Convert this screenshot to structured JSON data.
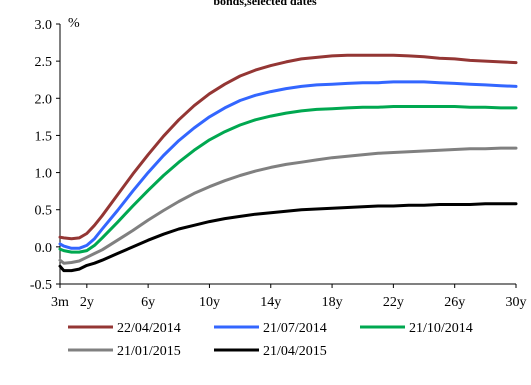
{
  "chart_data": {
    "type": "line",
    "title": "bonds,selected dates",
    "ylabel": "%",
    "xlabel": "",
    "x_tick_labels": [
      "3m",
      "2y",
      "6y",
      "10y",
      "14y",
      "18y",
      "22y",
      "26y",
      "30y"
    ],
    "x_ticks": [
      0.25,
      2,
      6,
      10,
      14,
      18,
      22,
      26,
      30
    ],
    "xlim": [
      0.25,
      30
    ],
    "ylim": [
      -0.5,
      3.0
    ],
    "y_ticks": [
      -0.5,
      0.0,
      0.5,
      1.0,
      1.5,
      2.0,
      2.5,
      3.0
    ],
    "y_tick_labels": [
      "-0.5",
      "0.0",
      "0.5",
      "1.0",
      "1.5",
      "2.0",
      "2.5",
      "3.0"
    ],
    "grid": false,
    "legend_position": "bottom",
    "x": [
      0.25,
      0.5,
      1,
      1.5,
      2,
      2.5,
      3,
      4,
      5,
      6,
      7,
      8,
      9,
      10,
      11,
      12,
      13,
      14,
      15,
      16,
      17,
      18,
      19,
      20,
      21,
      22,
      23,
      24,
      25,
      26,
      27,
      28,
      29,
      30
    ],
    "series": [
      {
        "name": "22/04/2014",
        "color": "#943634",
        "values": [
          0.13,
          0.12,
          0.11,
          0.12,
          0.18,
          0.29,
          0.42,
          0.7,
          0.98,
          1.24,
          1.49,
          1.71,
          1.9,
          2.06,
          2.19,
          2.3,
          2.38,
          2.44,
          2.49,
          2.53,
          2.55,
          2.57,
          2.58,
          2.58,
          2.58,
          2.58,
          2.57,
          2.56,
          2.54,
          2.53,
          2.51,
          2.5,
          2.49,
          2.48
        ]
      },
      {
        "name": "21/07/2014",
        "color": "#3366ff",
        "values": [
          0.04,
          0.01,
          -0.02,
          -0.02,
          0.02,
          0.11,
          0.24,
          0.49,
          0.75,
          1.0,
          1.23,
          1.43,
          1.6,
          1.75,
          1.87,
          1.97,
          2.04,
          2.09,
          2.13,
          2.16,
          2.18,
          2.19,
          2.2,
          2.21,
          2.21,
          2.22,
          2.22,
          2.22,
          2.21,
          2.2,
          2.19,
          2.18,
          2.17,
          2.16
        ]
      },
      {
        "name": "21/10/2014",
        "color": "#00a850",
        "values": [
          -0.03,
          -0.05,
          -0.07,
          -0.07,
          -0.05,
          0.02,
          0.12,
          0.33,
          0.55,
          0.76,
          0.96,
          1.14,
          1.3,
          1.44,
          1.55,
          1.64,
          1.71,
          1.76,
          1.8,
          1.83,
          1.85,
          1.86,
          1.87,
          1.88,
          1.88,
          1.89,
          1.89,
          1.89,
          1.89,
          1.89,
          1.88,
          1.88,
          1.87,
          1.87
        ]
      },
      {
        "name": "21/01/2015",
        "color": "#808080",
        "values": [
          -0.18,
          -0.22,
          -0.21,
          -0.19,
          -0.14,
          -0.09,
          -0.04,
          0.09,
          0.22,
          0.36,
          0.49,
          0.61,
          0.72,
          0.81,
          0.89,
          0.96,
          1.02,
          1.07,
          1.11,
          1.14,
          1.17,
          1.2,
          1.22,
          1.24,
          1.26,
          1.27,
          1.28,
          1.29,
          1.3,
          1.31,
          1.32,
          1.32,
          1.33,
          1.33
        ]
      },
      {
        "name": "21/04/2015",
        "color": "#000000",
        "values": [
          -0.26,
          -0.32,
          -0.32,
          -0.3,
          -0.25,
          -0.22,
          -0.18,
          -0.09,
          0.0,
          0.09,
          0.17,
          0.24,
          0.29,
          0.34,
          0.38,
          0.41,
          0.44,
          0.46,
          0.48,
          0.5,
          0.51,
          0.52,
          0.53,
          0.54,
          0.55,
          0.55,
          0.56,
          0.56,
          0.57,
          0.57,
          0.57,
          0.58,
          0.58,
          0.58
        ]
      }
    ]
  }
}
